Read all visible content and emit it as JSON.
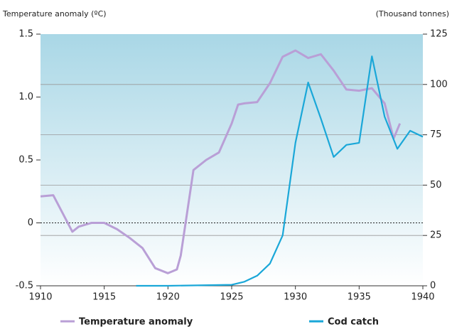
{
  "chart_data": {
    "type": "line",
    "y_label": "Temperature anomaly (ºC)",
    "y2_label": "(Thousand tonnes)",
    "xlim": [
      1910,
      1940
    ],
    "xticks": [
      1910,
      1915,
      1920,
      1925,
      1930,
      1935,
      1940
    ],
    "ylim": [
      -0.5,
      1.5
    ],
    "yticks": [
      -0.5,
      0,
      0.5,
      {
        "value": 1,
        "label": "1.0"
      },
      1.5
    ],
    "y2lim": [
      0,
      125
    ],
    "y2ticks": [
      0,
      25,
      50,
      75,
      100,
      125
    ],
    "grid": "y2",
    "zero_line": "dotted",
    "legend": "bottom",
    "series": [
      {
        "name": "Temperature anomaly",
        "color": "#b99fd6",
        "x": [
          1910,
          1911,
          1912.5,
          1913,
          1914,
          1915,
          1916,
          1917,
          1918,
          1919,
          1920,
          1920.7,
          1921,
          1922,
          1923,
          1924,
          1925,
          1925.5,
          1926,
          1927,
          1928,
          1929,
          1930,
          1931,
          1932,
          1933,
          1934,
          1935,
          1936,
          1937,
          1937.7,
          1938.2
        ],
        "values": [
          0.21,
          0.22,
          -0.07,
          -0.03,
          0.0,
          0.0,
          -0.05,
          -0.12,
          -0.2,
          -0.36,
          -0.4,
          -0.37,
          -0.26,
          0.42,
          0.5,
          0.56,
          0.79,
          0.94,
          0.95,
          0.96,
          1.11,
          1.32,
          1.37,
          1.31,
          1.34,
          1.21,
          1.06,
          1.05,
          1.07,
          0.95,
          0.67,
          0.79
        ]
      },
      {
        "name": "Cod catch",
        "color": "#1aa7d8",
        "axis": "y2",
        "x": [
          1917.5,
          1920,
          1925,
          1926,
          1927,
          1928,
          1929,
          1930,
          1931,
          1932,
          1933,
          1934,
          1935,
          1936,
          1937,
          1938,
          1939,
          1940
        ],
        "values": [
          0,
          0,
          0.5,
          2,
          5,
          11,
          25,
          71,
          101,
          83,
          64,
          70,
          71,
          114,
          84,
          68,
          77,
          74
        ]
      }
    ]
  }
}
